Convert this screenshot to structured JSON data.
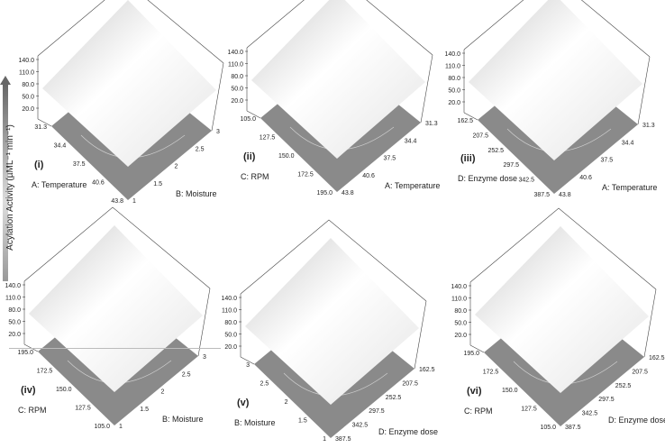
{
  "y_axis_title": "Acylation Activity (µML⁻¹ min⁻¹)",
  "chart_data": [
    {
      "type": "surface",
      "panel": "(i)",
      "z_ticks": [
        "140.0",
        "110.0",
        "80.0",
        "50.0",
        "20.0"
      ],
      "left_axis": {
        "title": "A: Temperature",
        "ticks": [
          "31.3",
          "34.4",
          "37.5",
          "40.6",
          "43.8"
        ]
      },
      "right_axis": {
        "title": "B: Moisture",
        "ticks": [
          "1",
          "1.5",
          "2",
          "2.5",
          "3"
        ]
      }
    },
    {
      "type": "surface",
      "panel": "(ii)",
      "z_ticks": [
        "140.0",
        "110.0",
        "80.0",
        "50.0",
        "20.0"
      ],
      "left_axis": {
        "title": "C: RPM",
        "ticks": [
          "105.0",
          "127.5",
          "150.0",
          "172.5",
          "195.0"
        ]
      },
      "right_axis": {
        "title": "A: Temperature",
        "ticks": [
          "43.8",
          "40.6",
          "37.5",
          "34.4",
          "31.3"
        ]
      }
    },
    {
      "type": "surface",
      "panel": "(iii)",
      "z_ticks": [
        "140.0",
        "110.0",
        "80.0",
        "50.0",
        "20.0"
      ],
      "left_axis": {
        "title": "D: Enzyme dose",
        "ticks": [
          "162.5",
          "207.5",
          "252.5",
          "297.5",
          "342.5",
          "387.5"
        ]
      },
      "right_axis": {
        "title": "A: Temperature",
        "ticks": [
          "43.8",
          "40.6",
          "37.5",
          "34.4",
          "31.3"
        ]
      }
    },
    {
      "type": "surface",
      "panel": "(iv)",
      "z_ticks": [
        "140.0",
        "110.0",
        "80.0",
        "50.0",
        "20.0"
      ],
      "left_axis": {
        "title": "C: RPM",
        "ticks": [
          "195.0",
          "172.5",
          "150.0",
          "127.5",
          "105.0"
        ]
      },
      "right_axis": {
        "title": "B: Moisture",
        "ticks": [
          "1",
          "1.5",
          "2",
          "2.5",
          "3"
        ]
      }
    },
    {
      "type": "surface",
      "panel": "(v)",
      "z_ticks": [
        "140.0",
        "110.0",
        "80.0",
        "50.0",
        "20.0"
      ],
      "left_axis": {
        "title": "B: Moisture",
        "ticks": [
          "3",
          "2.5",
          "2",
          "1.5",
          "1"
        ]
      },
      "right_axis": {
        "title": "D: Enzyme dose",
        "ticks": [
          "387.5",
          "342.5",
          "297.5",
          "252.5",
          "207.5",
          "162.5"
        ]
      }
    },
    {
      "type": "surface",
      "panel": "(vi)",
      "z_ticks": [
        "140.0",
        "110.0",
        "80.0",
        "50.0",
        "20.0"
      ],
      "left_axis": {
        "title": "C: RPM",
        "ticks": [
          "195.0",
          "172.5",
          "150.0",
          "127.5",
          "105.0"
        ]
      },
      "right_axis": {
        "title": "D: Enzyme dose",
        "ticks": [
          "387.5",
          "342.5",
          "297.5",
          "252.5",
          "207.5",
          "162.5"
        ]
      }
    }
  ],
  "colors": {
    "floor": "#8a8a8a",
    "surface_light": "#ffffff",
    "surface_dark": "#c8c8c8",
    "axis": "#444444"
  }
}
